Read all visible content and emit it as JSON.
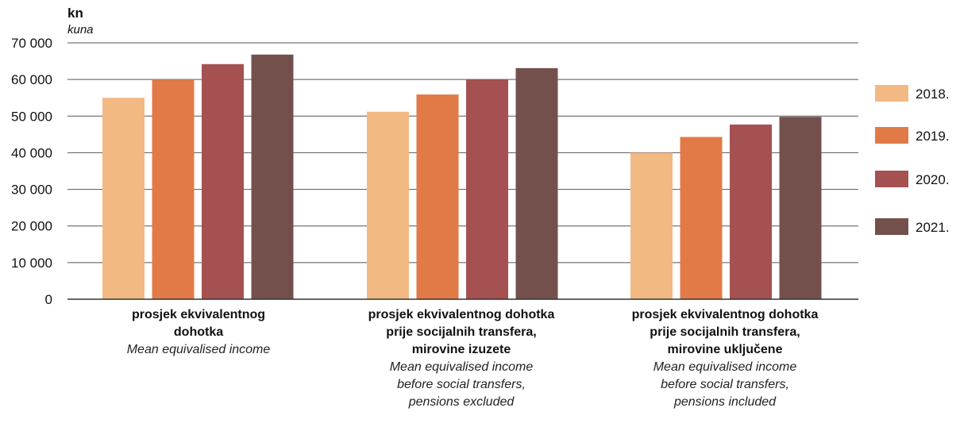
{
  "chart_data": {
    "type": "bar",
    "unit_label": "kn",
    "unit_sublabel": "kuna",
    "ylim": [
      0,
      70000
    ],
    "yticks": [
      "0",
      "10 000",
      "20 000",
      "30 000",
      "40 000",
      "50 000",
      "60 000",
      "70 000"
    ],
    "grid": true,
    "legend_position": "right",
    "categories": [
      {
        "label_lines": [
          "prosjek ekvivalentnog",
          "dohotka"
        ],
        "sublabel_lines": [
          "Mean equivalised income"
        ]
      },
      {
        "label_lines": [
          "prosjek ekvivalentnog dohotka",
          "prije socijalnih transfera,",
          "mirovine izuzete"
        ],
        "sublabel_lines": [
          "Mean equivalised income",
          "before social transfers,",
          "pensions excluded"
        ]
      },
      {
        "label_lines": [
          "prosjek ekvivalentnog dohotka",
          "prije socijalnih transfera,",
          "mirovine uključene"
        ],
        "sublabel_lines": [
          "Mean equivalised income",
          "before social transfers,",
          "pensions included"
        ]
      }
    ],
    "series": [
      {
        "name": "2018.",
        "color": "#f3b983",
        "values": [
          55000,
          51200,
          40000
        ]
      },
      {
        "name": "2019.",
        "color": "#e27a47",
        "values": [
          60000,
          55900,
          44300
        ]
      },
      {
        "name": "2020.",
        "color": "#a55152",
        "values": [
          64200,
          60000,
          47700
        ]
      },
      {
        "name": "2021.",
        "color": "#74504c",
        "values": [
          66800,
          63100,
          49800
        ]
      }
    ]
  }
}
